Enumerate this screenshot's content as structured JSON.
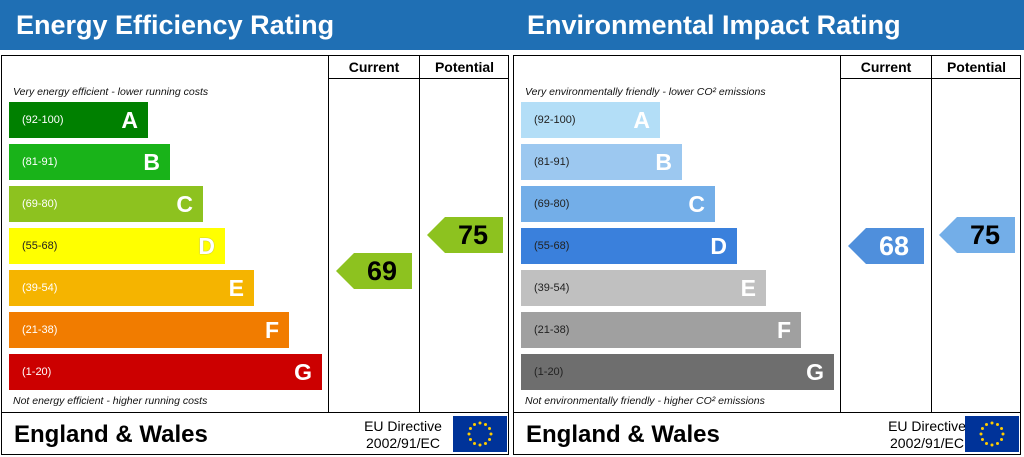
{
  "chart_data": [
    {
      "type": "bar",
      "title": "Energy Efficiency Rating",
      "columns": [
        "Current",
        "Potential"
      ],
      "top_note": "Very energy efficient - lower running costs",
      "bottom_note": "Not energy efficient - higher running costs",
      "bands": [
        {
          "letter": "A",
          "range": "(92-100)",
          "min": 92,
          "max": 100,
          "color": "#008000"
        },
        {
          "letter": "B",
          "range": "(81-91)",
          "min": 81,
          "max": 91,
          "color": "#19b319"
        },
        {
          "letter": "C",
          "range": "(69-80)",
          "min": 69,
          "max": 80,
          "color": "#8dc21f"
        },
        {
          "letter": "D",
          "range": "(55-68)",
          "min": 55,
          "max": 68,
          "color": "#ffff00"
        },
        {
          "letter": "E",
          "range": "(39-54)",
          "min": 39,
          "max": 54,
          "color": "#f5b400"
        },
        {
          "letter": "F",
          "range": "(21-38)",
          "min": 21,
          "max": 38,
          "color": "#f17c00"
        },
        {
          "letter": "G",
          "range": "(1-20)",
          "min": 1,
          "max": 20,
          "color": "#cc0000"
        }
      ],
      "current": {
        "value": "69",
        "score": 69,
        "color": "#8dc21f"
      },
      "potential": {
        "value": "75",
        "score": 75,
        "color": "#8dc21f"
      }
    },
    {
      "type": "bar",
      "title": "Environmental Impact Rating",
      "columns": [
        "Current",
        "Potential"
      ],
      "top_note": "Very environmentally friendly - lower CO² emissions",
      "bottom_note": "Not environmentally friendly - higher CO² emissions",
      "bands": [
        {
          "letter": "A",
          "range": "(92-100)",
          "min": 92,
          "max": 100,
          "color": "#b3def7"
        },
        {
          "letter": "B",
          "range": "(81-91)",
          "min": 81,
          "max": 91,
          "color": "#9cc8f0"
        },
        {
          "letter": "C",
          "range": "(69-80)",
          "min": 69,
          "max": 80,
          "color": "#73aee8"
        },
        {
          "letter": "D",
          "range": "(55-68)",
          "min": 55,
          "max": 68,
          "color": "#3a80dc"
        },
        {
          "letter": "E",
          "range": "(39-54)",
          "min": 39,
          "max": 54,
          "color": "#c0c0c0"
        },
        {
          "letter": "F",
          "range": "(21-38)",
          "min": 21,
          "max": 38,
          "color": "#a0a0a0"
        },
        {
          "letter": "G",
          "range": "(1-20)",
          "min": 1,
          "max": 20,
          "color": "#6e6e6e"
        }
      ],
      "current": {
        "value": "68",
        "score": 68,
        "color": "#4f8fdc"
      },
      "potential": {
        "value": "75",
        "score": 75,
        "color": "#73aee8"
      }
    }
  ],
  "footer": {
    "region": "England & Wales",
    "directive_line1": "EU Directive",
    "directive_line2": "2002/91/EC",
    "flag_icon": "eu-flag-icon"
  }
}
